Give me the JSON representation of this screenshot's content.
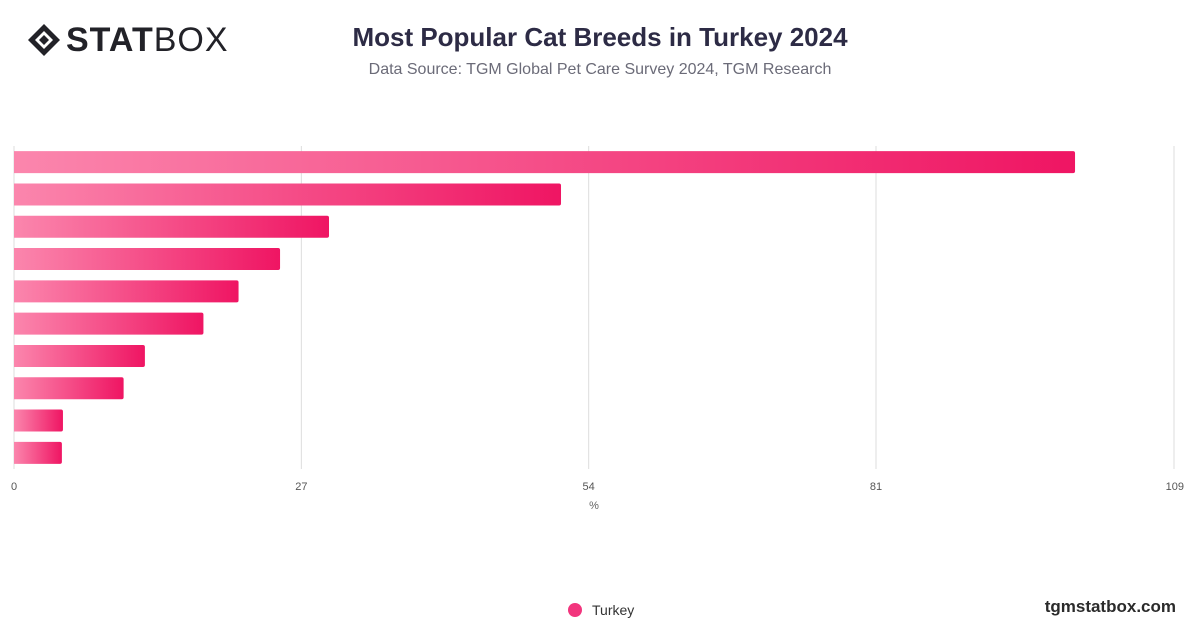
{
  "brand": {
    "name_bold": "STAT",
    "name_light": "BOX"
  },
  "header": {
    "title": "Most Popular Cat Breeds in Turkey 2024",
    "subtitle": "Data Source: TGM Global Pet Care Survey 2024, TGM Research"
  },
  "footer": {
    "site": "tgmstatbox.com"
  },
  "colors": {
    "bar_start": "#fb86ad",
    "bar_end": "#ef1563",
    "legend": "#f2357d",
    "grid": "#dddddd"
  },
  "chart_data": {
    "type": "bar",
    "orientation": "horizontal",
    "categories": [
      "",
      "",
      "",
      "",
      "",
      "",
      "",
      "",
      "",
      ""
    ],
    "series": [
      {
        "name": "Turkey",
        "values": [
          99.7,
          51.4,
          29.6,
          25.0,
          21.1,
          17.8,
          12.3,
          10.3,
          4.6,
          4.5
        ]
      }
    ],
    "xlabel": "%",
    "xlim": [
      0,
      109
    ],
    "ticks": [
      "0",
      "27",
      "54",
      "81",
      "109"
    ],
    "tick_values": [
      0,
      27,
      54,
      81,
      109
    ],
    "grid": true,
    "legend_position": "bottom-center"
  }
}
